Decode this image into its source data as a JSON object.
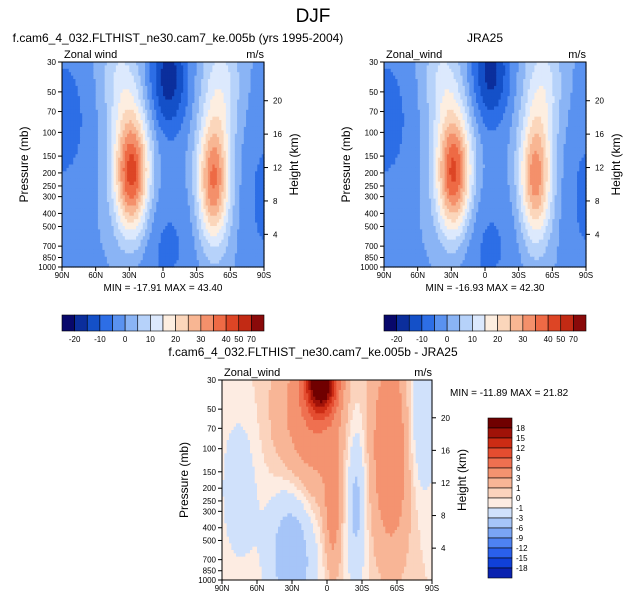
{
  "page_title": "DJF",
  "colors": {
    "main_scale": [
      "#08086b",
      "#0b2e9c",
      "#1450c8",
      "#2d6ee6",
      "#5a92f0",
      "#8ab4f5",
      "#b6d2fa",
      "#dce9fd",
      "#fdeee0",
      "#fbd6bb",
      "#f8b693",
      "#f4906b",
      "#ee6a45",
      "#dd4525",
      "#c22a14",
      "#8a0a0a"
    ],
    "diff_scale": [
      "#000080",
      "#0a22b0",
      "#1040d8",
      "#2a60ec",
      "#4e82f2",
      "#7aa5f5",
      "#a6c5f8",
      "#d0e1fb",
      "#fdece2",
      "#fbd3bd",
      "#f8b596",
      "#f49370",
      "#ef7050",
      "#e44d30",
      "#cc2c14",
      "#a01208",
      "#700000"
    ]
  },
  "chart_data": [
    {
      "type": "heatmap",
      "title": "f.cam6_4_032.FLTHIST_ne30.cam7_ke.005b (yrs 1995-2004)",
      "left_label": "Zonal wind",
      "units": "m/s",
      "ylabel": "Pressure (mb)",
      "ylabel_right": "Height (km)",
      "x_ticks": [
        "90N",
        "60N",
        "30N",
        "0",
        "30S",
        "60S",
        "90S"
      ],
      "y_ticks": [
        "30",
        "50",
        "70",
        "100",
        "150",
        "200",
        "250",
        "300",
        "400",
        "500",
        "700",
        "850",
        "1000"
      ],
      "y_ticks_right": [
        "20",
        "16",
        "12",
        "8",
        "4"
      ],
      "stats": "MIN = -17.91   MAX = 43.40",
      "colorbar_labels": [
        "-20",
        "-10",
        "0",
        "10",
        "20",
        "30",
        "40",
        "50",
        "70"
      ],
      "jets": [
        {
          "lat": 28,
          "pressure": 200,
          "value": 43.4
        },
        {
          "lat": -45,
          "pressure": 230,
          "value": 36
        }
      ],
      "easterly_core": {
        "lat": -5,
        "pressure": 40,
        "value": -17.91
      }
    },
    {
      "type": "heatmap",
      "title": "JRA25",
      "left_label": "Zonal_wind",
      "units": "m/s",
      "ylabel": "Pressure (mb)",
      "ylabel_right": "Height (km)",
      "x_ticks": [
        "90N",
        "60N",
        "30N",
        "0",
        "30S",
        "60S",
        "90S"
      ],
      "y_ticks": [
        "30",
        "50",
        "70",
        "100",
        "150",
        "200",
        "250",
        "300",
        "400",
        "500",
        "700",
        "850",
        "1000"
      ],
      "y_ticks_right": [
        "20",
        "16",
        "12",
        "8",
        "4"
      ],
      "stats": "MIN = -16.93   MAX = 42.30",
      "colorbar_labels": [
        "-20",
        "-10",
        "0",
        "10",
        "20",
        "30",
        "40",
        "50",
        "70"
      ],
      "jets": [
        {
          "lat": 28,
          "pressure": 200,
          "value": 42.3
        },
        {
          "lat": -45,
          "pressure": 220,
          "value": 33
        }
      ],
      "easterly_core": {
        "lat": -5,
        "pressure": 35,
        "value": -16.93
      }
    },
    {
      "type": "heatmap",
      "title": "f.cam6_4_032.FLTHIST_ne30.cam7_ke.005b - JRA25",
      "left_label": "Zonal_wind",
      "units": "m/s",
      "ylabel": "Pressure (mb)",
      "ylabel_right": "Height (km)",
      "x_ticks": [
        "90N",
        "60N",
        "30N",
        "0",
        "30S",
        "60S",
        "90S"
      ],
      "y_ticks": [
        "30",
        "50",
        "70",
        "100",
        "150",
        "200",
        "250",
        "300",
        "400",
        "500",
        "700",
        "850",
        "1000"
      ],
      "y_ticks_right": [
        "20",
        "16",
        "12",
        "8",
        "4"
      ],
      "stats": "MIN = -11.89   MAX =  21.82",
      "colorbar_labels": [
        "18",
        "15",
        "12",
        "9",
        "6",
        "3",
        "1",
        "0",
        "-1",
        "-3",
        "-6",
        "-9",
        "-12",
        "-15",
        "-18"
      ],
      "max_core": {
        "lat": 5,
        "pressure": 30,
        "value": 21.82
      },
      "min_core": {
        "lat": 30,
        "pressure": 600,
        "value": -11.89
      }
    }
  ]
}
